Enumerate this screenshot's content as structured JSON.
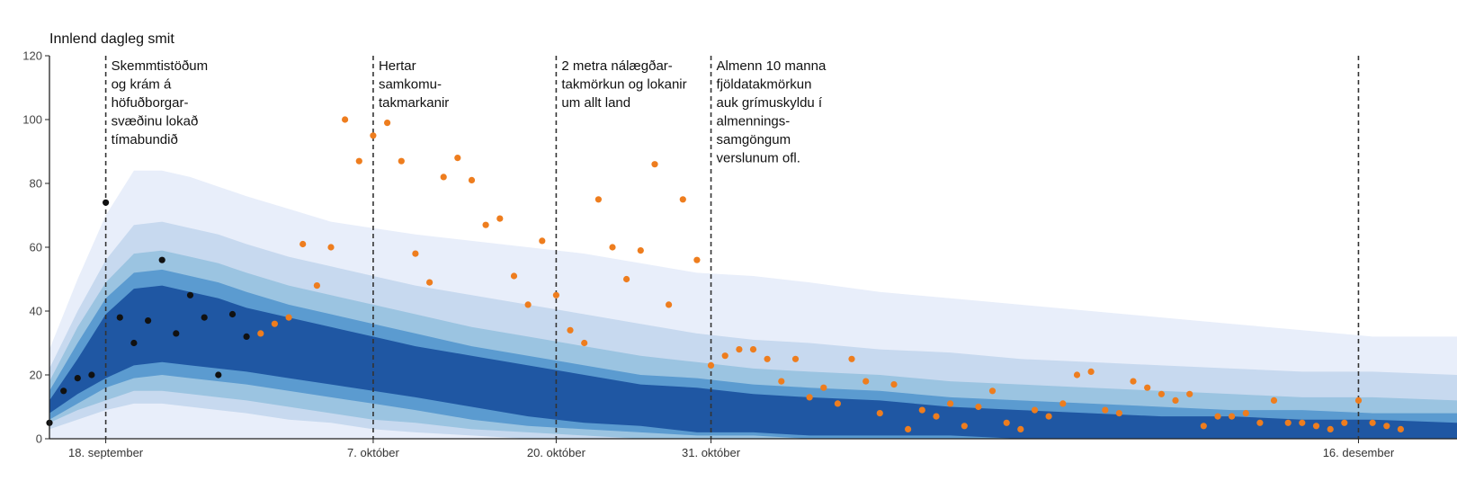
{
  "chart_data": {
    "type": "area",
    "title": "Innlend dagleg smit",
    "xlabel": "",
    "ylabel": "",
    "ylim": [
      0,
      120
    ],
    "xlim_days": [
      -4,
      96
    ],
    "yticks": [
      0,
      20,
      40,
      60,
      80,
      100,
      120
    ],
    "xticks": [
      {
        "day": 0,
        "label": "18. september"
      },
      {
        "day": 19,
        "label": "7. október"
      },
      {
        "day": 32,
        "label": "20. október"
      },
      {
        "day": 43,
        "label": "31. október"
      },
      {
        "day": 89,
        "label": "16. desember"
      }
    ],
    "events": [
      {
        "day": 0,
        "label": [
          "Skemmtistöðum",
          "og krám á",
          "höfuðborgar-",
          "svæðinu lokað",
          "tímabundið"
        ]
      },
      {
        "day": 19,
        "label": [
          "Hertar",
          "samkomu-",
          "takmarkanir"
        ]
      },
      {
        "day": 32,
        "label": [
          "2 metra nálægðar-",
          "takmörkun og lokanir",
          "um allt land"
        ]
      },
      {
        "day": 43,
        "label": [
          "Almenn 10 manna",
          "fjöldatakmörkun",
          "auk grímuskyldu í",
          "almennings-",
          "samgöngum",
          "verslunum ofl."
        ]
      }
    ],
    "prediction_bands": {
      "x": [
        -4,
        -2,
        0,
        2,
        4,
        6,
        8,
        10,
        13,
        16,
        19,
        22,
        26,
        30,
        34,
        38,
        42,
        46,
        50,
        55,
        60,
        65,
        70,
        75,
        80,
        85,
        90,
        96
      ],
      "bands": [
        {
          "name": "outer",
          "color": "#e8eefa",
          "lower": [
            0,
            0,
            0,
            0,
            0,
            0,
            0,
            0,
            0,
            0,
            0,
            0,
            0,
            0,
            0,
            0,
            0,
            0,
            0,
            0,
            0,
            0,
            0,
            0,
            0,
            0,
            0,
            0
          ],
          "upper": [
            28,
            50,
            70,
            84,
            84,
            82,
            79,
            76,
            72,
            68,
            66,
            64,
            62,
            60,
            58,
            55,
            52,
            51,
            49,
            46,
            44,
            42,
            40,
            38,
            36,
            34,
            32,
            32
          ]
        },
        {
          "name": "band2",
          "color": "#c7d9ef",
          "lower": [
            3,
            6,
            9,
            11,
            11,
            10,
            9,
            8,
            6,
            5,
            3,
            2,
            1,
            0,
            0,
            0,
            0,
            0,
            0,
            0,
            0,
            0,
            0,
            0,
            0,
            0,
            0,
            0
          ],
          "upper": [
            22,
            40,
            56,
            67,
            68,
            66,
            64,
            61,
            57,
            54,
            51,
            48,
            45,
            42,
            39,
            36,
            33,
            31,
            30,
            28,
            27,
            25,
            24,
            23,
            22,
            21,
            21,
            20
          ]
        },
        {
          "name": "band3",
          "color": "#9bc4e1",
          "lower": [
            5,
            9,
            12,
            15,
            15,
            14,
            13,
            12,
            10,
            8,
            6,
            5,
            3,
            2,
            1,
            0,
            0,
            0,
            0,
            0,
            0,
            0,
            0,
            0,
            0,
            0,
            0,
            0
          ],
          "upper": [
            18,
            35,
            49,
            58,
            59,
            57,
            55,
            52,
            48,
            45,
            42,
            39,
            35,
            32,
            29,
            26,
            24,
            22,
            21,
            20,
            18,
            17,
            16,
            15,
            14,
            13,
            13,
            12
          ]
        },
        {
          "name": "band4",
          "color": "#5b9bd0",
          "lower": [
            6,
            11,
            16,
            19,
            20,
            19,
            18,
            17,
            15,
            13,
            11,
            9,
            6,
            4,
            3,
            2,
            1,
            1,
            0,
            0,
            0,
            0,
            0,
            0,
            0,
            0,
            0,
            0
          ],
          "upper": [
            15,
            30,
            44,
            52,
            53,
            51,
            49,
            46,
            42,
            39,
            36,
            33,
            29,
            26,
            23,
            20,
            19,
            17,
            16,
            15,
            13,
            12,
            11,
            10,
            9,
            9,
            8,
            8
          ]
        },
        {
          "name": "inner",
          "color": "#1f57a3",
          "lower": [
            8,
            14,
            19,
            23,
            24,
            23,
            22,
            21,
            19,
            17,
            15,
            13,
            10,
            7,
            5,
            4,
            2,
            2,
            1,
            1,
            1,
            0,
            0,
            0,
            0,
            0,
            0,
            0
          ],
          "upper": [
            12,
            25,
            39,
            47,
            48,
            46,
            44,
            41,
            38,
            35,
            32,
            29,
            26,
            23,
            20,
            17,
            16,
            14,
            13,
            12,
            10,
            9,
            8,
            7,
            7,
            6,
            6,
            5
          ]
        }
      ]
    },
    "series": [
      {
        "name": "observed_before",
        "color": "#111111",
        "x": [
          -4,
          -3,
          -2,
          -1,
          0,
          1,
          2,
          3,
          4,
          5,
          6,
          7,
          8,
          9,
          10
        ],
        "y": [
          5,
          15,
          19,
          20,
          74,
          38,
          30,
          37,
          56,
          33,
          45,
          38,
          20,
          39,
          32
        ]
      },
      {
        "name": "observed_after",
        "color": "#ee7d1e",
        "x": [
          11,
          12,
          13,
          14,
          15,
          16,
          17,
          18,
          19,
          20,
          21,
          22,
          23,
          24,
          25,
          26,
          27,
          28,
          29,
          30,
          31,
          32,
          33,
          34,
          35,
          36,
          37,
          38,
          39,
          40,
          41,
          42,
          43,
          44,
          45,
          46,
          47,
          48,
          49,
          50,
          51,
          52,
          53,
          54,
          55,
          56,
          57,
          58,
          59,
          60,
          61,
          62,
          63,
          64,
          65,
          66,
          67,
          68,
          69,
          70,
          71,
          72,
          73,
          74,
          75,
          76,
          77,
          78,
          79,
          80,
          81,
          82,
          83,
          84,
          85,
          86,
          87,
          88,
          89,
          90,
          91,
          92
        ],
        "y": [
          33,
          36,
          38,
          61,
          48,
          60,
          100,
          87,
          95,
          99,
          87,
          58,
          49,
          82,
          88,
          81,
          67,
          69,
          51,
          42,
          62,
          45,
          34,
          30,
          75,
          60,
          50,
          59,
          86,
          42,
          75,
          56,
          23,
          26,
          28,
          28,
          25,
          18,
          25,
          13,
          16,
          11,
          25,
          18,
          8,
          17,
          3,
          9,
          7,
          11,
          4,
          10,
          15,
          5,
          3,
          9,
          7,
          11,
          20,
          21,
          9,
          8,
          18,
          16,
          14,
          12,
          14,
          4,
          7,
          7,
          8,
          5,
          12,
          5,
          5,
          4,
          3,
          5,
          12,
          5,
          4,
          3
        ]
      }
    ]
  }
}
